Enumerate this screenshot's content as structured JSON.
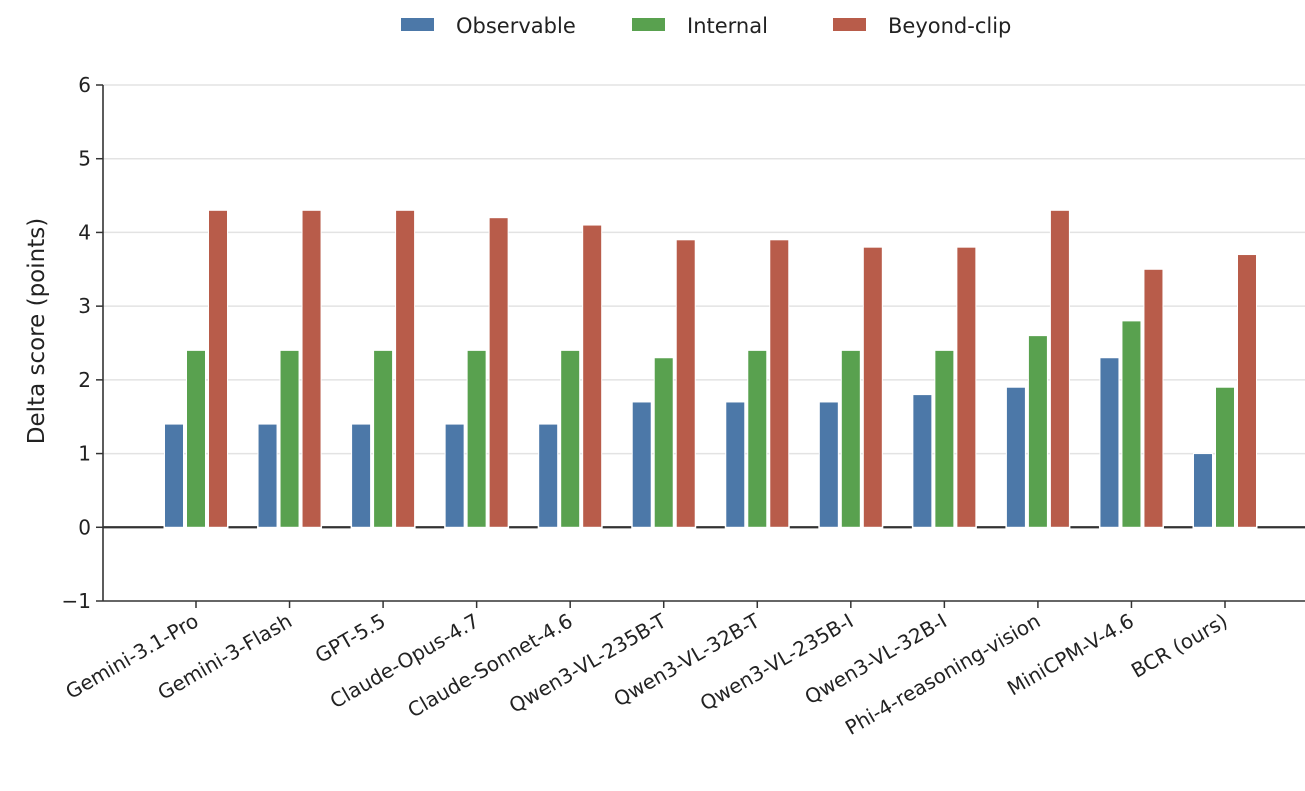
{
  "chart_data": {
    "type": "bar",
    "ylabel": "Delta score (points)",
    "ylim": [
      -1,
      6
    ],
    "yticks": [
      "−1",
      "0",
      "1",
      "2",
      "3",
      "4",
      "5",
      "6"
    ],
    "grid": true,
    "legend_position": "top-center",
    "categories": [
      "Gemini-3.1-Pro",
      "Gemini-3-Flash",
      "GPT-5.5",
      "Claude-Opus-4.7",
      "Claude-Sonnet-4.6",
      "Qwen3-VL-235B-T",
      "Qwen3-VL-32B-T",
      "Qwen3-VL-235B-I",
      "Qwen3-VL-32B-I",
      "Phi-4-reasoning-vision",
      "MiniCPM-V-4.6",
      "BCR (ours)"
    ],
    "series": [
      {
        "name": "Observable",
        "color": "#4c78a8",
        "values": [
          1.4,
          1.4,
          1.4,
          1.4,
          1.4,
          1.7,
          1.7,
          1.7,
          1.8,
          1.9,
          2.3,
          1.0
        ]
      },
      {
        "name": "Internal",
        "color": "#59a14f",
        "values": [
          2.4,
          2.4,
          2.4,
          2.4,
          2.4,
          2.3,
          2.4,
          2.4,
          2.4,
          2.6,
          2.8,
          1.9
        ]
      },
      {
        "name": "Beyond-clip",
        "color": "#b85c4a",
        "values": [
          4.3,
          4.3,
          4.3,
          4.2,
          4.1,
          3.9,
          3.9,
          3.8,
          3.8,
          4.3,
          3.5,
          3.7
        ]
      }
    ]
  }
}
